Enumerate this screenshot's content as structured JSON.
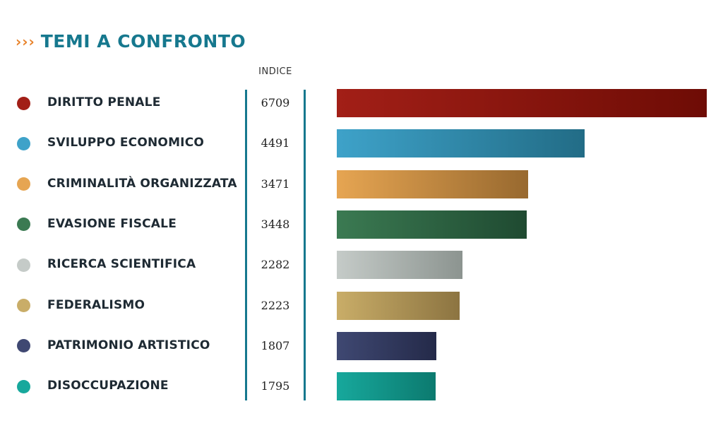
{
  "title": {
    "chevrons": "›››",
    "text": "TEMI A CONFRONTO"
  },
  "column_header": "INDICE",
  "chart_data": {
    "type": "bar",
    "orientation": "horizontal",
    "title": "TEMI A CONFRONTO",
    "value_label": "INDICE",
    "xlim": [
      0,
      6709
    ],
    "categories": [
      "DIRITTO PENALE",
      "SVILUPPO ECONOMICO",
      "CRIMINALITÀ ORGANIZZATA",
      "EVASIONE FISCALE",
      "RICERCA SCIENTIFICA",
      "FEDERALISMO",
      "PATRIMONIO ARTISTICO",
      "DISOCCUPAZIONE"
    ],
    "values": [
      6709,
      4491,
      3471,
      3448,
      2282,
      2223,
      1807,
      1795
    ],
    "colors": [
      [
        "#a21f17",
        "#6e0c05"
      ],
      [
        "#3ea2c9",
        "#226c86"
      ],
      [
        "#e6a552",
        "#98692f"
      ],
      [
        "#3b7a52",
        "#1f4a31"
      ],
      [
        "#c5cbc8",
        "#8c9490"
      ],
      [
        "#c9ad68",
        "#8c7441"
      ],
      [
        "#3f4872",
        "#242a49"
      ],
      [
        "#17a89c",
        "#0c7a6f"
      ]
    ]
  },
  "accent_colors": {
    "title": "#16788e",
    "chevrons": "#e8822a",
    "divider": "#16788e"
  }
}
